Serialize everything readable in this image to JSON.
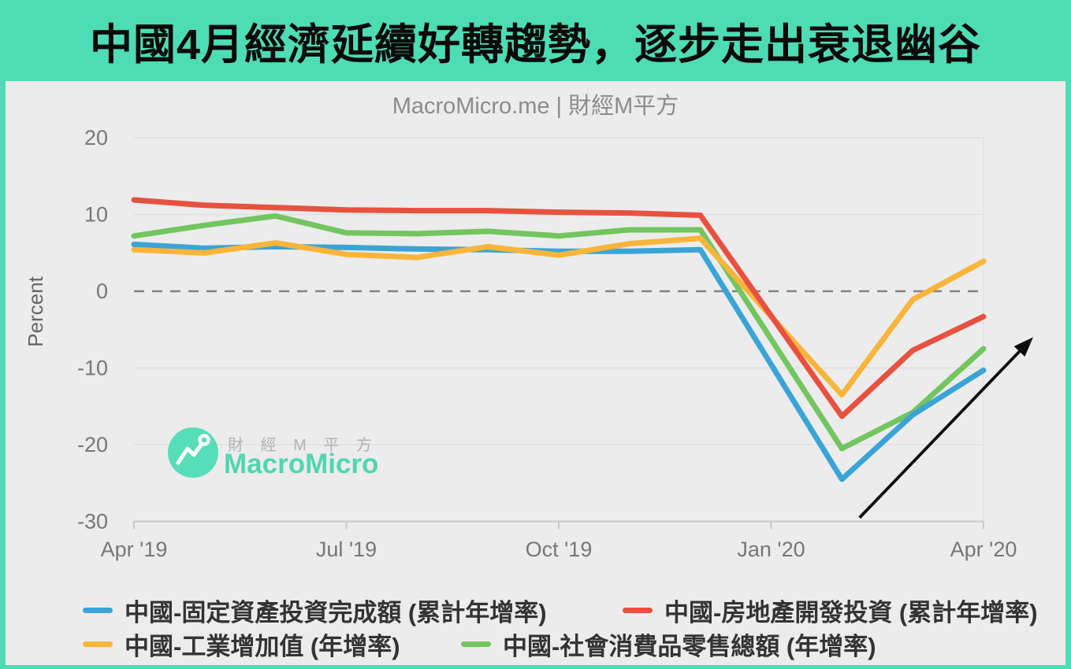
{
  "page": {
    "title": "中國4月經濟延續好轉趨勢，逐步走出衰退幽谷",
    "accent_color": "#4edcb4",
    "card_background": "#ececec"
  },
  "watermark": {
    "cjk": "財 經 M 平 方",
    "brand": "MacroMicro",
    "logo_icon": "zigzag-line-chart-icon",
    "brand_color": "#4fd6b0"
  },
  "chart_data": {
    "type": "line",
    "title": "MacroMicro.me | 財經M平方",
    "xlabel": "",
    "ylabel": "Percent",
    "ylim": [
      -30,
      20
    ],
    "yticks": [
      20,
      10,
      0,
      -10,
      -20,
      -30
    ],
    "grid": true,
    "zero_line": "dashed",
    "legend_position": "bottom",
    "x": [
      "2019-04",
      "2019-05",
      "2019-06",
      "2019-07",
      "2019-08",
      "2019-09",
      "2019-10",
      "2019-11",
      "2019-12",
      "2020-01",
      "2020-02",
      "2020-03",
      "2020-04"
    ],
    "x_tick_labels": [
      "Apr '19",
      "Jul '19",
      "Oct '19",
      "Jan '20",
      "Apr '20"
    ],
    "x_tick_positions": [
      0,
      3,
      6,
      9,
      12
    ],
    "series": [
      {
        "name": "中國-固定資產投資完成額 (累計年增率)",
        "color": "#3ba4d6",
        "values": [
          6.1,
          5.6,
          5.8,
          5.7,
          5.5,
          5.4,
          5.2,
          5.2,
          5.4,
          null,
          -24.5,
          -16.1,
          -10.3
        ]
      },
      {
        "name": "中國-房地產開發投資 (累計年增率)",
        "color": "#e8513f",
        "values": [
          11.9,
          11.2,
          10.9,
          10.6,
          10.5,
          10.5,
          10.3,
          10.2,
          9.9,
          null,
          -16.3,
          -7.7,
          -3.3
        ]
      },
      {
        "name": "中國-工業增加值 (年增率)",
        "color": "#f9b53a",
        "values": [
          5.4,
          5.0,
          6.3,
          4.8,
          4.4,
          5.8,
          4.7,
          6.2,
          6.9,
          null,
          -13.5,
          -1.1,
          3.9
        ]
      },
      {
        "name": "中國-社會消費品零售總額 (年增率)",
        "color": "#73c55f",
        "values": [
          7.2,
          8.6,
          9.8,
          7.6,
          7.5,
          7.8,
          7.2,
          8.0,
          8.0,
          null,
          -20.5,
          -15.8,
          -7.5
        ]
      }
    ],
    "annotation_arrow": {
      "from": [
        10.25,
        -29.5
      ],
      "to": [
        12.7,
        -6.0
      ],
      "color": "#0d0d0d"
    }
  }
}
